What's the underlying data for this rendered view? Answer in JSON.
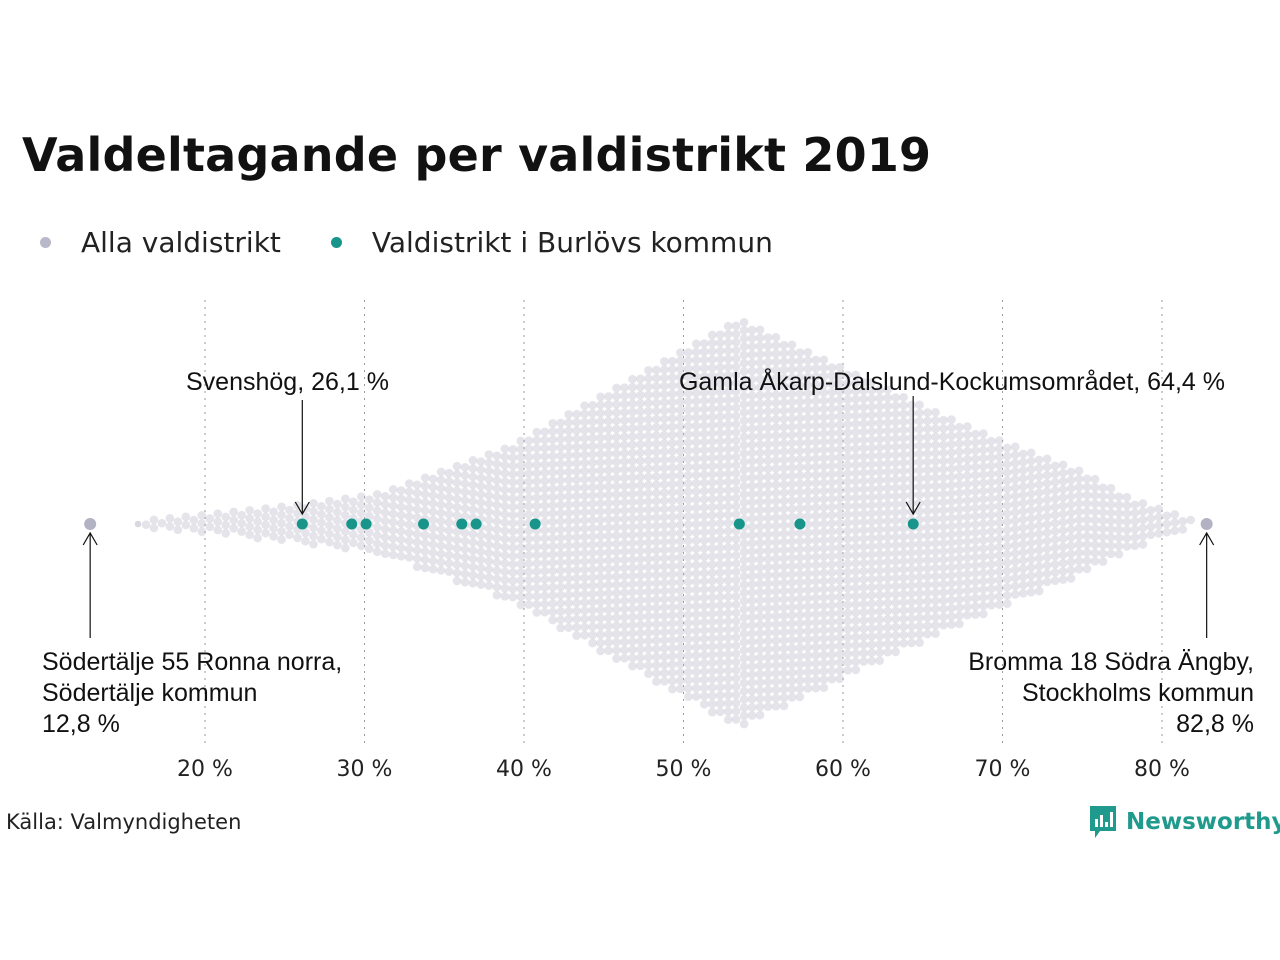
{
  "chart_data": {
    "type": "scatter",
    "subtype": "beeswarm",
    "title": "Valdeltagande per valdistrikt 2019",
    "xlim": [
      13,
      84
    ],
    "x_ticks": [
      20,
      30,
      40,
      50,
      60,
      70,
      80
    ],
    "x_tick_labels": [
      "20 %",
      "30 %",
      "40 %",
      "50 %",
      "60 %",
      "70 %",
      "80 %"
    ],
    "grid": "vertical dotted",
    "legend": {
      "position": "top-left",
      "entries": [
        {
          "label": "Alla valdistrikt",
          "color": "#b9b8c9"
        },
        {
          "label": "Valdistrikt i Burlövs kommun",
          "color": "#17958a"
        }
      ]
    },
    "series": [
      {
        "name": "Alla valdistrikt",
        "color": "#b9b8c9",
        "distribution_note": "approx. 6 300 valdistrikt, densest near 53,5 %",
        "x": [
          12.8,
          82.8
        ]
      },
      {
        "name": "Valdistrikt i Burlövs kommun",
        "color": "#17958a",
        "x": [
          26.1,
          29.2,
          30.1,
          33.7,
          36.1,
          37.0,
          40.7,
          53.5,
          57.3,
          64.4
        ]
      }
    ],
    "annotations": [
      {
        "id": "svenshog",
        "x": 26.1,
        "lines": [
          "Svenshög, 26,1 %"
        ]
      },
      {
        "id": "gamla",
        "x": 64.4,
        "lines": [
          "Gamla Åkarp-Dalslund-Kockumsområdet, 64,4 %"
        ]
      },
      {
        "id": "sodertalje",
        "x": 12.8,
        "lines": [
          "Södertälje 55 Ronna norra,",
          "Södertälje kommun",
          "12,8 %"
        ]
      },
      {
        "id": "bromma",
        "x": 82.8,
        "lines": [
          "Bromma 18 Södra Ängby,",
          "Stockholms kommun",
          "82,8 %"
        ]
      }
    ]
  },
  "footer": {
    "source": "Källa: Valmyndigheten",
    "logo_text": "Newsworthy",
    "logo_icon": "newsworthy-chart-bubble-icon",
    "logo_color": "#1f9a8c"
  }
}
